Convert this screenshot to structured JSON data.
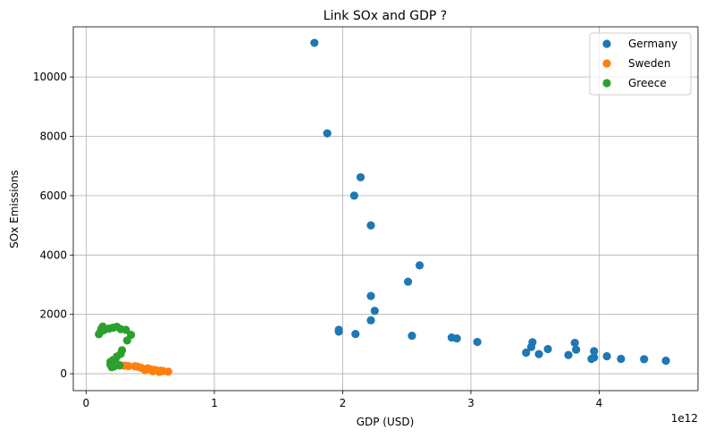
{
  "chart_data": {
    "type": "scatter",
    "title": "Link SOx and GDP ?",
    "xlabel": "GDP (USD)",
    "ylabel": "SOx Emissions",
    "x_offset_label": "1e12",
    "x_ticks": [
      0,
      1,
      2,
      3,
      4
    ],
    "x_tick_labels": [
      "0",
      "1",
      "2",
      "3",
      "4"
    ],
    "y_ticks": [
      0,
      2000,
      4000,
      6000,
      8000,
      10000
    ],
    "y_tick_labels": [
      "0",
      "2000",
      "4000",
      "6000",
      "8000",
      "10000"
    ],
    "xlim": [
      -0.1,
      4.77
    ],
    "ylim": [
      -570,
      11690
    ],
    "grid": true,
    "legend_position": "top-right",
    "series": [
      {
        "name": "Germany",
        "color": "#1f77b4",
        "points": [
          [
            1.78,
            11150
          ],
          [
            1.88,
            8100
          ],
          [
            2.14,
            6620
          ],
          [
            2.09,
            6000
          ],
          [
            2.22,
            5000
          ],
          [
            2.6,
            3650
          ],
          [
            2.51,
            3100
          ],
          [
            2.22,
            2620
          ],
          [
            2.25,
            2120
          ],
          [
            2.22,
            1800
          ],
          [
            1.97,
            1480
          ],
          [
            1.97,
            1420
          ],
          [
            2.1,
            1340
          ],
          [
            2.54,
            1280
          ],
          [
            2.85,
            1220
          ],
          [
            2.89,
            1190
          ],
          [
            3.05,
            1070
          ],
          [
            3.48,
            1060
          ],
          [
            3.81,
            1040
          ],
          [
            3.47,
            900
          ],
          [
            3.6,
            830
          ],
          [
            3.82,
            810
          ],
          [
            3.96,
            760
          ],
          [
            3.43,
            710
          ],
          [
            3.53,
            660
          ],
          [
            3.76,
            630
          ],
          [
            4.06,
            590
          ],
          [
            3.96,
            550
          ],
          [
            3.94,
            500
          ],
          [
            4.17,
            500
          ],
          [
            4.35,
            490
          ],
          [
            4.52,
            440
          ]
        ]
      },
      {
        "name": "Sweden",
        "color": "#ff7f0e",
        "points": [
          [
            0.2,
            330
          ],
          [
            0.24,
            300
          ],
          [
            0.27,
            280
          ],
          [
            0.3,
            270
          ],
          [
            0.33,
            260
          ],
          [
            0.38,
            250
          ],
          [
            0.4,
            240
          ],
          [
            0.43,
            200
          ],
          [
            0.48,
            180
          ],
          [
            0.5,
            150
          ],
          [
            0.53,
            130
          ],
          [
            0.55,
            110
          ],
          [
            0.58,
            100
          ],
          [
            0.6,
            90
          ],
          [
            0.64,
            70
          ],
          [
            0.57,
            60
          ],
          [
            0.52,
            80
          ],
          [
            0.46,
            120
          ]
        ]
      },
      {
        "name": "Greece",
        "color": "#2ca02c",
        "points": [
          [
            0.1,
            1330
          ],
          [
            0.11,
            1400
          ],
          [
            0.12,
            1520
          ],
          [
            0.13,
            1590
          ],
          [
            0.14,
            1470
          ],
          [
            0.18,
            1520
          ],
          [
            0.21,
            1550
          ],
          [
            0.24,
            1580
          ],
          [
            0.27,
            1500
          ],
          [
            0.31,
            1480
          ],
          [
            0.35,
            1310
          ],
          [
            0.32,
            1120
          ],
          [
            0.28,
            790
          ],
          [
            0.27,
            670
          ],
          [
            0.24,
            580
          ],
          [
            0.21,
            460
          ],
          [
            0.19,
            300
          ],
          [
            0.2,
            220
          ],
          [
            0.22,
            250
          ],
          [
            0.24,
            290
          ],
          [
            0.26,
            280
          ],
          [
            0.23,
            380
          ],
          [
            0.19,
            400
          ]
        ]
      }
    ]
  }
}
